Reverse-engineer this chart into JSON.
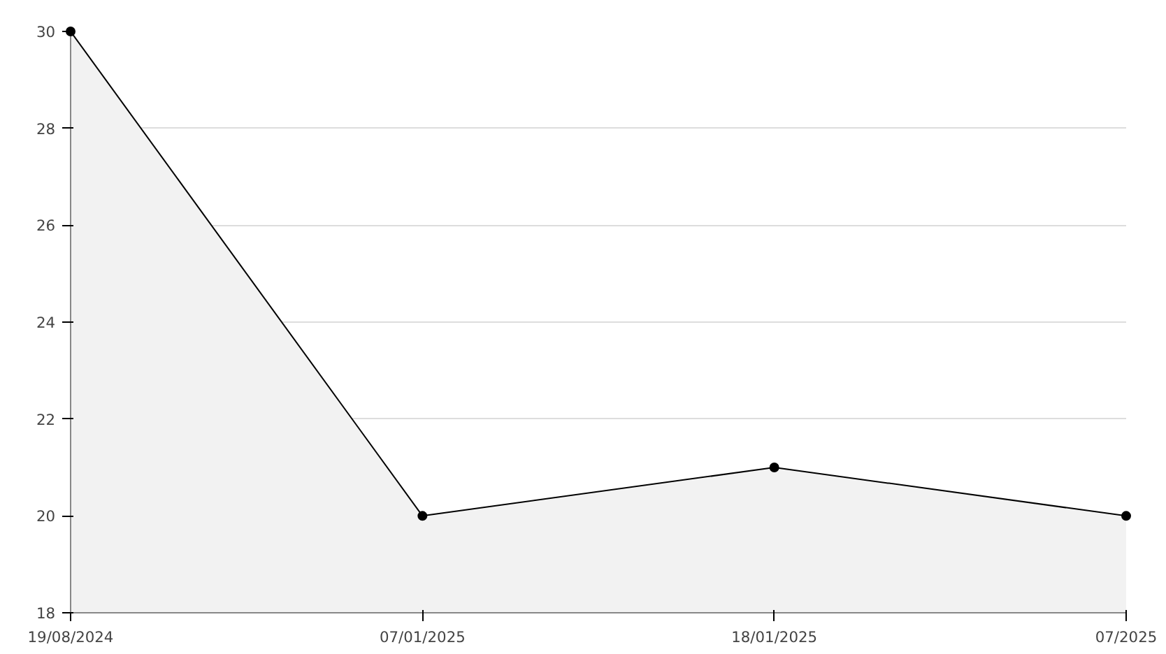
{
  "chart_data": {
    "type": "area",
    "categories": [
      "19/08/2024",
      "07/01/2025",
      "18/01/2025",
      "07/2025"
    ],
    "series": [
      {
        "color": "#000000",
        "values": [
          30,
          20,
          21,
          20
        ]
      }
    ],
    "ylim": [
      18,
      30
    ],
    "yticks": [
      18,
      20,
      22,
      24,
      26,
      28,
      30
    ],
    "grid": "y",
    "marker": "circle",
    "line_style": "solid"
  }
}
